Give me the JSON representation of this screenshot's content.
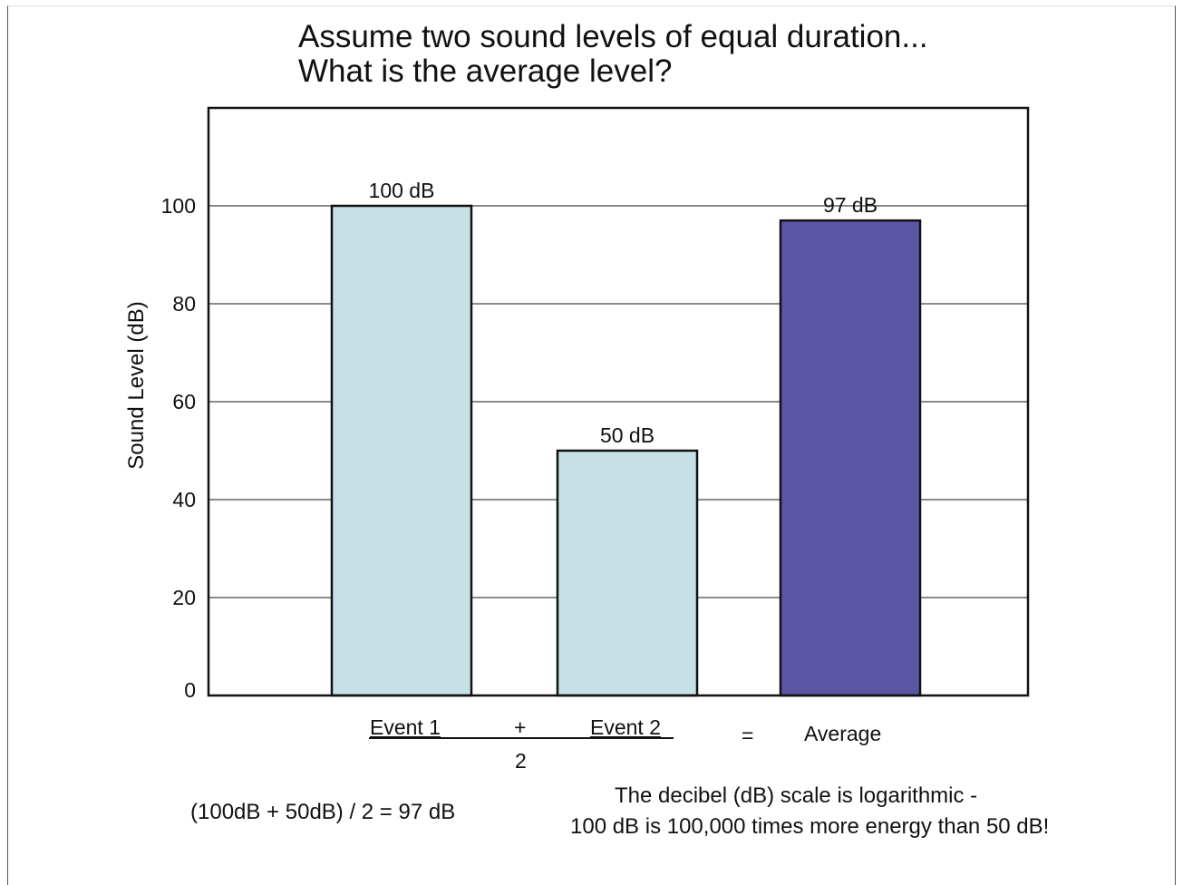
{
  "title_lines": [
    "Assume two sound levels of equal duration...",
    "What is the average level?"
  ],
  "chart_data": {
    "type": "bar",
    "categories": [
      "Event 1",
      "Event 2",
      "Average"
    ],
    "values": [
      100,
      50,
      97
    ],
    "bar_labels": [
      "100 dB",
      "50 dB",
      "97 dB"
    ],
    "bar_colors": [
      "#c5e1e6",
      "#c5e1e6",
      "#5c55a5"
    ],
    "ylabel": "Sound Level (dB)",
    "xlabel": "",
    "ylim": [
      0,
      120
    ],
    "yticks": [
      0,
      20,
      40,
      60,
      80,
      100
    ],
    "grid": true
  },
  "formula": {
    "event1": "Event 1",
    "plus": "+",
    "event2": "Event 2",
    "divisor": "2",
    "equals": "=",
    "average": "Average"
  },
  "calc_text": "(100dB + 50dB) / 2 = 97 dB",
  "note_lines": [
    "The decibel (dB) scale is logarithmic -",
    "100 dB is 100,000 times more energy than 50 dB!"
  ]
}
